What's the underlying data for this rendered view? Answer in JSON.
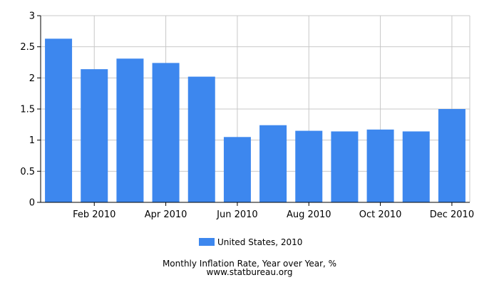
{
  "chart_data": {
    "type": "bar",
    "categories": [
      "Jan 2010",
      "Feb 2010",
      "Mar 2010",
      "Apr 2010",
      "May 2010",
      "Jun 2010",
      "Jul 2010",
      "Aug 2010",
      "Sep 2010",
      "Oct 2010",
      "Nov 2010",
      "Dec 2010"
    ],
    "x_tick_labels": [
      "Feb 2010",
      "Apr 2010",
      "Jun 2010",
      "Aug 2010",
      "Oct 2010",
      "Dec 2010"
    ],
    "series": [
      {
        "name": "United States, 2010",
        "color": "#3d87ee",
        "values": [
          2.63,
          2.14,
          2.31,
          2.24,
          2.02,
          1.05,
          1.24,
          1.15,
          1.14,
          1.17,
          1.14,
          1.5
        ]
      }
    ],
    "ylim": [
      0,
      3
    ],
    "y_ticks": [
      "0",
      "0.5",
      "1",
      "1.5",
      "2",
      "2.5",
      "3"
    ],
    "grid": true,
    "legend_position": "bottom",
    "title": "Monthly Inflation Rate, Year over Year, %",
    "subtitle": "www.statbureau.org"
  }
}
